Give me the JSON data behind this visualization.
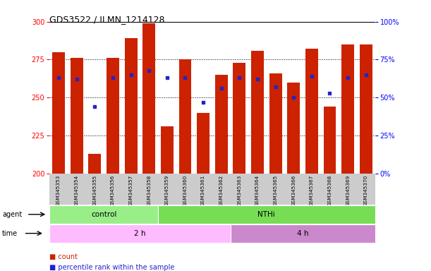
{
  "title": "GDS3522 / ILMN_1214128",
  "samples": [
    "GSM345353",
    "GSM345354",
    "GSM345355",
    "GSM345356",
    "GSM345357",
    "GSM345358",
    "GSM345359",
    "GSM345360",
    "GSM345361",
    "GSM345362",
    "GSM345363",
    "GSM345364",
    "GSM345365",
    "GSM345366",
    "GSM345367",
    "GSM345368",
    "GSM345369",
    "GSM345370"
  ],
  "counts": [
    280,
    276,
    213,
    276,
    289,
    299,
    231,
    275,
    240,
    265,
    273,
    281,
    266,
    260,
    282,
    244,
    285,
    285
  ],
  "percentile_values": [
    263,
    262,
    244,
    263,
    265,
    268,
    263,
    263,
    247,
    256,
    263,
    262,
    257,
    250,
    264,
    253,
    263,
    265
  ],
  "ymin": 200,
  "ymax": 300,
  "yticks": [
    200,
    225,
    250,
    275,
    300
  ],
  "right_yticks": [
    0,
    25,
    50,
    75,
    100
  ],
  "right_yticklabels": [
    "0%",
    "25%",
    "50%",
    "75%",
    "100%"
  ],
  "bar_color": "#CC2200",
  "dot_color": "#2222CC",
  "background_color": "#FFFFFF",
  "xticklabel_bg": "#CCCCCC",
  "control_color": "#99EE88",
  "nthi_color": "#77DD55",
  "time2h_color": "#FFBBFF",
  "time4h_color": "#CC88CC",
  "control_samples": 6,
  "time2h_samples": 10,
  "time4h_samples": 8,
  "legend_count_label": "count",
  "legend_pct_label": "percentile rank within the sample",
  "agent_label": "agent",
  "time_label": "time",
  "control_label": "control",
  "nthi_label": "NTHi",
  "time2h_label": "2 h",
  "time4h_label": "4 h"
}
